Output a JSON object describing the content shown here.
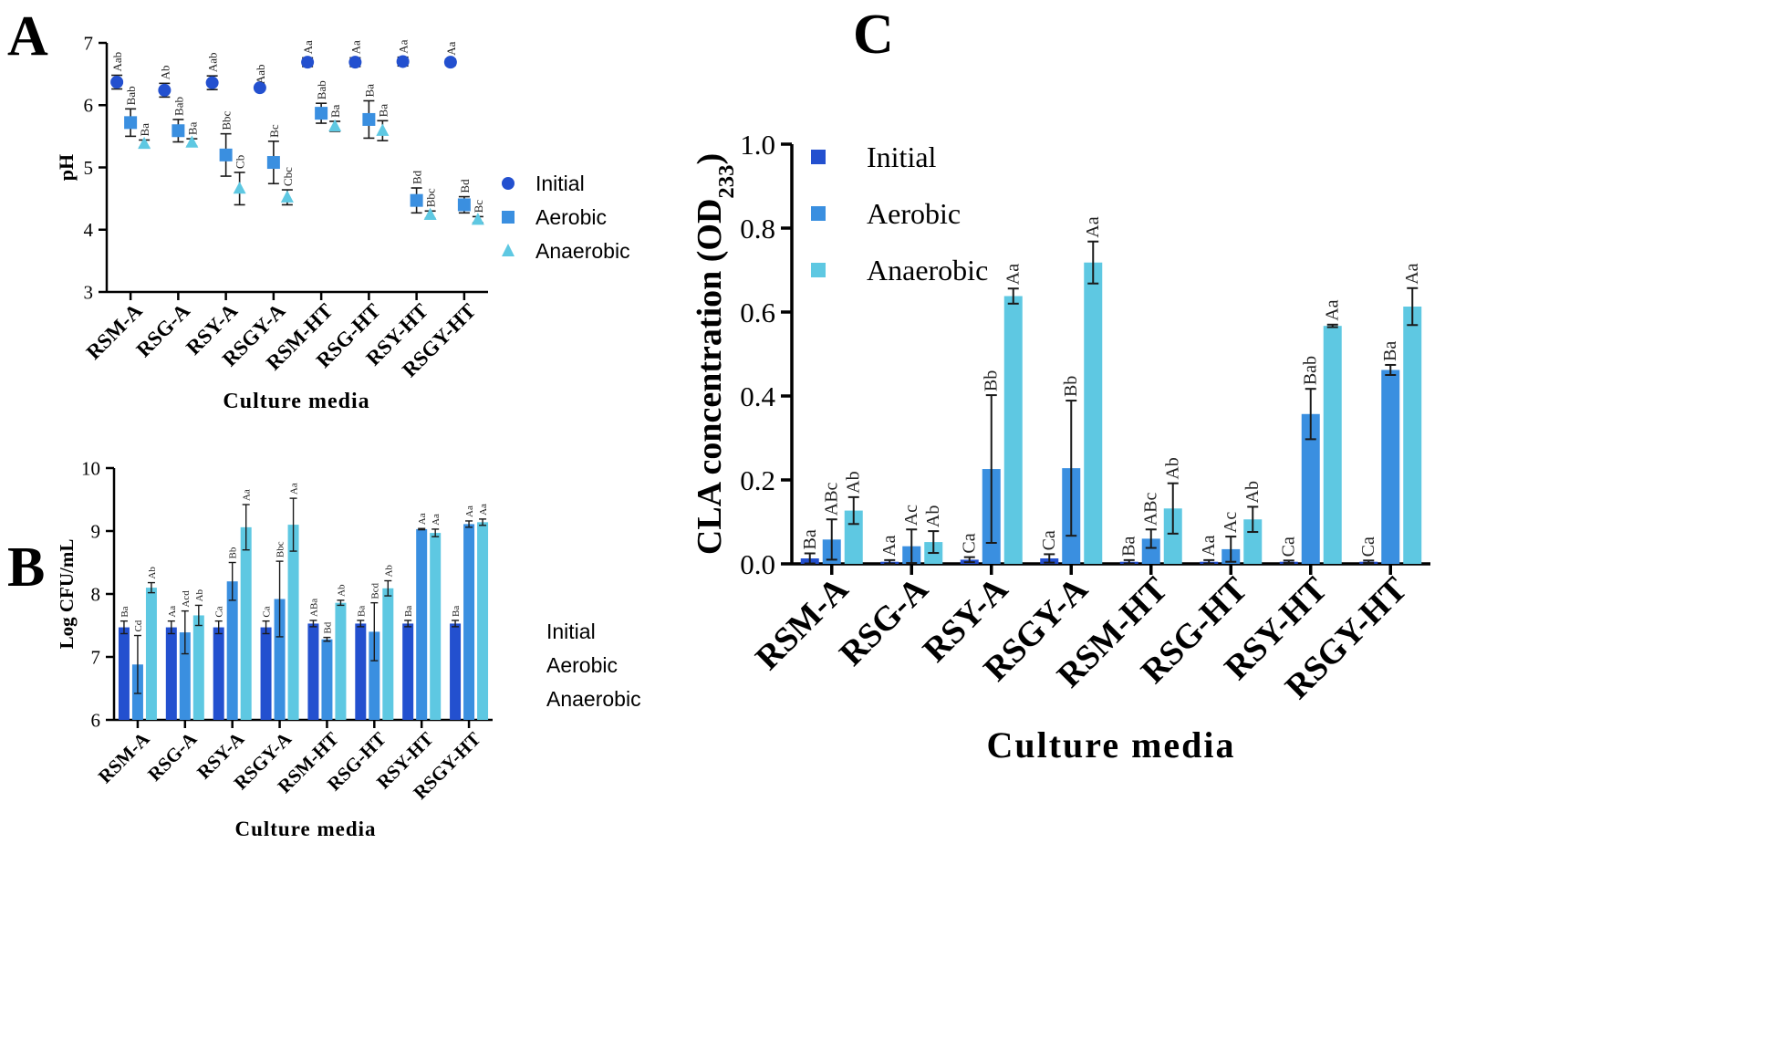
{
  "panels": {
    "A": "A",
    "B": "B",
    "C": "C"
  },
  "colors": {
    "initial": "#2350cf",
    "aerobic": "#3a8fe0",
    "anaerobic": "#5ec8e2"
  },
  "chart_data": [
    {
      "id": "A",
      "type": "scatter",
      "ylabel": "pH",
      "xlabel": "Culture media",
      "ylim": [
        3,
        7
      ],
      "yticks": [
        "3",
        "4",
        "5",
        "6",
        "7"
      ],
      "categories": [
        "RSM-A",
        "RSG-A",
        "RSY-A",
        "RSGY-A",
        "RSM-HT",
        "RSG-HT",
        "RSY-HT",
        "RSGY-HT"
      ],
      "legend": [
        "Initial",
        "Aerobic",
        "Anaerobic"
      ],
      "series": [
        {
          "name": "Initial",
          "values": [
            6.37,
            6.24,
            6.36,
            6.28,
            6.69,
            6.69,
            6.7,
            6.69
          ],
          "errors": [
            0.11,
            0.11,
            0.11,
            0.0,
            0.07,
            0.07,
            0.07,
            0.05
          ],
          "labels": [
            "Aab",
            "Ab",
            "Aab",
            "Aab",
            "Aa",
            "Aa",
            "Aa",
            "Aa"
          ]
        },
        {
          "name": "Aerobic",
          "values": [
            5.72,
            5.59,
            5.2,
            5.08,
            5.87,
            5.77,
            4.47,
            4.4
          ],
          "errors": [
            0.22,
            0.18,
            0.34,
            0.34,
            0.16,
            0.3,
            0.2,
            0.13
          ],
          "labels": [
            "Bab",
            "Bab",
            "Bbc",
            "Bc",
            "Bab",
            "Ba",
            "Bd",
            "Bd"
          ]
        },
        {
          "name": "Anaerobic",
          "values": [
            5.38,
            5.4,
            4.66,
            4.52,
            5.66,
            5.59,
            4.24,
            4.16
          ],
          "errors": [
            0.06,
            0.06,
            0.26,
            0.12,
            0.08,
            0.16,
            0.06,
            0.05
          ],
          "labels": [
            "Ba",
            "Ba",
            "Cb",
            "Cbc",
            "Ba",
            "Ba",
            "Bbc",
            "Bc"
          ]
        }
      ]
    },
    {
      "id": "B",
      "type": "bar",
      "ylabel": "Log CFU/mL",
      "xlabel": "Culture media",
      "ylim": [
        6,
        10
      ],
      "yticks": [
        "6",
        "7",
        "8",
        "9",
        "10"
      ],
      "categories": [
        "RSM-A",
        "RSG-A",
        "RSY-A",
        "RSGY-A",
        "RSM-HT",
        "RSG-HT",
        "RSY-HT",
        "RSGY-HT"
      ],
      "legend": [
        "Initial",
        "Aerobic",
        "Anaerobic"
      ],
      "series": [
        {
          "name": "Initial",
          "values": [
            7.47,
            7.47,
            7.47,
            7.47,
            7.53,
            7.53,
            7.53,
            7.53
          ],
          "errors": [
            0.1,
            0.1,
            0.1,
            0.1,
            0.05,
            0.05,
            0.05,
            0.05
          ],
          "labels": [
            "Ba",
            "Aa",
            "Ca",
            "Ca",
            "ABa",
            "Ba",
            "Ba",
            "Ba"
          ]
        },
        {
          "name": "Aerobic",
          "values": [
            6.88,
            7.39,
            8.2,
            7.92,
            7.28,
            7.4,
            9.03,
            9.11
          ],
          "errors": [
            0.46,
            0.34,
            0.3,
            0.6,
            0.03,
            0.46,
            0.01,
            0.05
          ],
          "labels": [
            "Cd",
            "Acd",
            "Bb",
            "Bbc",
            "Bd",
            "Bcd",
            "Aa",
            "Aa"
          ]
        },
        {
          "name": "Anaerobic",
          "values": [
            8.1,
            7.66,
            9.06,
            9.1,
            7.86,
            8.09,
            8.97,
            9.14
          ],
          "errors": [
            0.08,
            0.16,
            0.36,
            0.42,
            0.04,
            0.12,
            0.06,
            0.05
          ],
          "labels": [
            "Ab",
            "Ab",
            "Aa",
            "Aa",
            "Ab",
            "Ab",
            "Aa",
            "Aa"
          ]
        }
      ]
    },
    {
      "id": "C",
      "type": "bar",
      "ylabel": "CLA concentration (OD",
      "ylabel_sub": "233",
      "ylabel_end": ")",
      "xlabel": "Culture media",
      "ylim": [
        0,
        1.0
      ],
      "yticks": [
        "0.0",
        "0.2",
        "0.4",
        "0.6",
        "0.8",
        "1.0"
      ],
      "categories": [
        "RSM-A",
        "RSG-A",
        "RSY-A",
        "RSGY-A",
        "RSM-HT",
        "RSG-HT",
        "RSY-HT",
        "RSGY-HT"
      ],
      "legend": [
        "Initial",
        "Aerobic",
        "Anaerobic"
      ],
      "series": [
        {
          "name": "Initial",
          "values": [
            0.013,
            0.005,
            0.01,
            0.013,
            0.005,
            0.005,
            0.005,
            0.005
          ],
          "errors": [
            0.012,
            0.004,
            0.006,
            0.01,
            0.004,
            0.004,
            0.003,
            0.003
          ],
          "labels": [
            "Ba",
            "Aa",
            "Ca",
            "Ca",
            "Ba",
            "Aa",
            "Ca",
            "Ca"
          ]
        },
        {
          "name": "Aerobic",
          "values": [
            0.058,
            0.042,
            0.226,
            0.228,
            0.06,
            0.035,
            0.357,
            0.462
          ],
          "errors": [
            0.048,
            0.04,
            0.176,
            0.161,
            0.022,
            0.03,
            0.06,
            0.012
          ],
          "labels": [
            "ABc",
            "Ac",
            "Bb",
            "Bb",
            "ABc",
            "Ac",
            "Bab",
            "Ba"
          ]
        },
        {
          "name": "Anaerobic",
          "values": [
            0.127,
            0.052,
            0.638,
            0.718,
            0.132,
            0.106,
            0.567,
            0.613
          ],
          "errors": [
            0.032,
            0.026,
            0.018,
            0.05,
            0.06,
            0.03,
            0.003,
            0.044
          ],
          "labels": [
            "Ab",
            "Ab",
            "Aa",
            "Aa",
            "Ab",
            "Ab",
            "Aa",
            "Aa"
          ]
        }
      ]
    }
  ]
}
